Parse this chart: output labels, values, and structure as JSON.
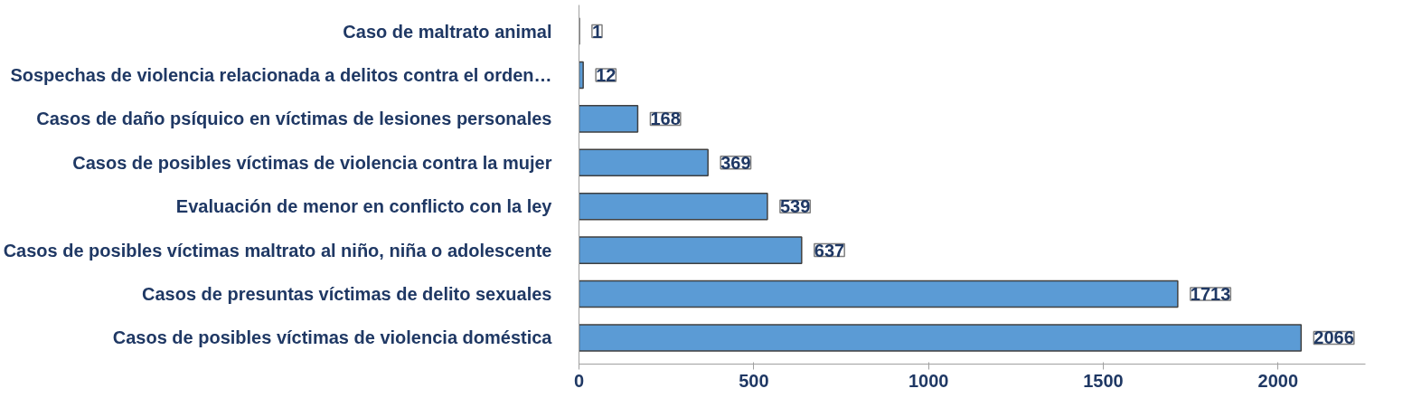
{
  "chart_data": {
    "type": "bar",
    "orientation": "horizontal",
    "categories": [
      "Caso de maltrato animal",
      "Sospechas de violencia relacionada a delitos contra el orden…",
      "Casos de daño psíquico en víctimas de lesiones personales",
      "Casos de posibles víctimas de violencia contra la mujer",
      "Evaluación de menor en conflicto con la ley",
      "Casos de posibles víctimas maltrato al niño, niña o adolescente",
      "Casos de presuntas víctimas de delito sexuales",
      "Casos de posibles víctimas de violencia doméstica"
    ],
    "values": [
      1,
      12,
      168,
      369,
      539,
      637,
      1713,
      2066
    ],
    "color": "#5b9bd5",
    "xlim": [
      0,
      2250
    ],
    "xticks": [
      0,
      500,
      1000,
      1500,
      2000
    ],
    "data_labels": true,
    "grid": false
  }
}
